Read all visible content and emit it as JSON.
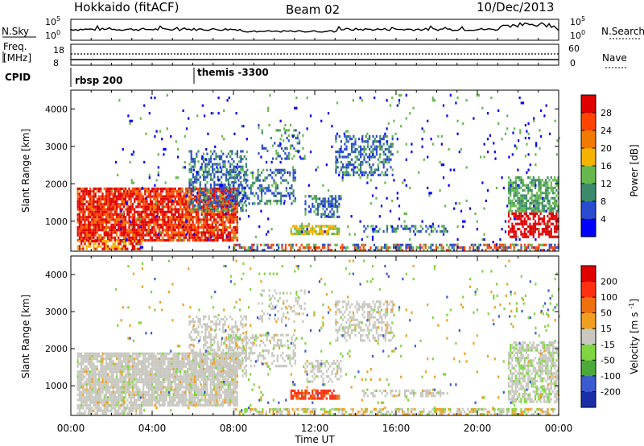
{
  "header": {
    "station": "Hokkaido (fitACF)",
    "beam": "Beam 02",
    "date": "10/Dec/2013"
  },
  "top_panels": {
    "sky_label": "N.Sky",
    "search_label": "N.Search",
    "sky_ticks": [
      "10^5",
      "10^0"
    ],
    "sky_ticks_right": [
      "10^5",
      "10^0"
    ],
    "freq_label_1": "Freq.",
    "freq_label_2": "[MHz]",
    "freq_ticks": [
      "8",
      "18"
    ],
    "nave_ticks": [
      "60",
      "0"
    ],
    "nave_label": "Nave",
    "cpid_label": "CPID",
    "cpid_programs": [
      {
        "name": "rbsp 200",
        "start_hour": 0
      },
      {
        "name": "themis -3300",
        "start_hour": 6
      }
    ]
  },
  "chart_data": [
    {
      "type": "heatmap",
      "name": "power",
      "ylabel": "Slant Range [km]",
      "y_ticks": [
        "1000",
        "2000",
        "3000",
        "4000"
      ],
      "ylim": [
        200,
        4500
      ],
      "x_ticks": [
        "00:00",
        "04:00",
        "08:00",
        "12:00",
        "16:00",
        "20:00",
        "00:00"
      ],
      "xlim_hours": [
        0,
        24
      ],
      "colorbar": {
        "label": "Power [dB]",
        "ticks": [
          "4",
          "8",
          "12",
          "16",
          "20",
          "24",
          "28"
        ],
        "colors": [
          "#0000ff",
          "#2a4bd0",
          "#3c8a6c",
          "#66b84e",
          "#f5b300",
          "#f07b00",
          "#ff4400",
          "#e00000"
        ]
      }
    },
    {
      "type": "heatmap",
      "name": "velocity",
      "ylabel": "Slant Range [km]",
      "y_ticks": [
        "1000",
        "2000",
        "3000",
        "4000"
      ],
      "ylim": [
        200,
        4500
      ],
      "x_ticks": [
        "00:00",
        "04:00",
        "08:00",
        "12:00",
        "16:00",
        "20:00",
        "00:00"
      ],
      "xlabel": "Time UT",
      "colorbar": {
        "label": "Velocity [m s^-1]",
        "ticks": [
          "200",
          "100",
          "50",
          "15",
          "-15",
          "-50",
          "-100",
          "-200"
        ],
        "colors": [
          "#1a2ea8",
          "#3b5bd0",
          "#4caa3a",
          "#7fd640",
          "#c8c8c0",
          "#f0a020",
          "#f07010",
          "#ff3010",
          "#e00000"
        ]
      }
    }
  ]
}
